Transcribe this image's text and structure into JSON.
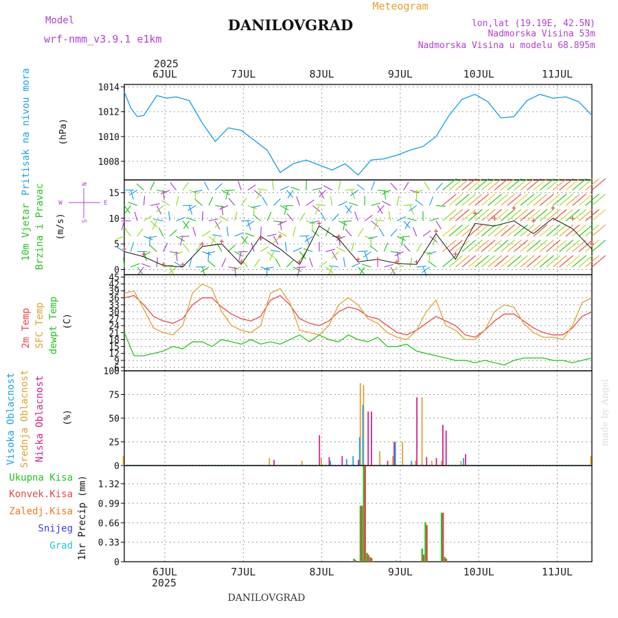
{
  "header": {
    "model_label": "Model",
    "model_value": "wrf-nmm_v3.9.1 e1km",
    "title": "DANILOVGRAD",
    "subtitle": "Meteogram",
    "coords": "lon,lat (19.19E, 42.5N)",
    "altitude": "Nadmorska Visina 53m",
    "model_altitude": "Nadmorska Visina u modelu 68.895m",
    "year_top": "2025",
    "year_bottom": "2025",
    "footer_title": "DANILOVGRAD",
    "credit": "made by Angel"
  },
  "days": [
    "6JUL",
    "7JUL",
    "8JUL",
    "9JUL",
    "10JUL",
    "11JUL"
  ],
  "colors": {
    "pressure": "#1ea0e6",
    "wind_label": "#22c41e",
    "wind_dir": "#b040d0",
    "t2m": "#e64646",
    "sfc": "#e0a030",
    "dew": "#22c41e",
    "high_cloud": "#1ea0e6",
    "mid_cloud": "#e0a030",
    "low_cloud": "#d0208c",
    "ukupna": "#22c41e",
    "konvek": "#e64646",
    "zaledj": "#f07820",
    "snijeg": "#3c3ce6",
    "grad": "#1ec8c8"
  },
  "chart_data": [
    {
      "type": "line",
      "panel": "pressure",
      "ylabel_main": "Pritisak na nivou mora",
      "unit": "(hPa)",
      "ylim": [
        1006.5,
        1014.2
      ],
      "yticks": [
        "1014",
        "1012",
        "1010",
        "1008"
      ],
      "x_hours": [
        0,
        2,
        4,
        6,
        8,
        10,
        13,
        16,
        20,
        24,
        28,
        32,
        36,
        40,
        44,
        48,
        52,
        56,
        60,
        64,
        68,
        72,
        76,
        80,
        84,
        88,
        92,
        96,
        100,
        104,
        108,
        112,
        116,
        120,
        124,
        128,
        132,
        136,
        140,
        144
      ],
      "values": [
        1013.6,
        1012.3,
        1011.6,
        1011.7,
        1012.5,
        1013.3,
        1013.1,
        1013.2,
        1012.9,
        1011.1,
        1009.6,
        1010.7,
        1010.5,
        1009.7,
        1008.9,
        1007.1,
        1007.8,
        1008.1,
        1007.7,
        1007.3,
        1007.8,
        1006.9,
        1008.1,
        1008.2,
        1008.5,
        1008.9,
        1009.2,
        1010.0,
        1011.7,
        1013.0,
        1013.4,
        1012.8,
        1011.5,
        1011.6,
        1012.9,
        1013.4,
        1013.1,
        1013.2,
        1012.8,
        1011.7
      ],
      "grid": true
    },
    {
      "type": "barbs",
      "panel": "wind",
      "ylabel_main": "10m Vjetar",
      "ylabel_sub": "Brzina i Pravac",
      "unit": "(m/s)",
      "compass": {
        "n": "N",
        "w": "W",
        "e": "E",
        "s": "S"
      },
      "ylim": [
        -1,
        17.5
      ],
      "yticks": [
        "15",
        "10",
        "5",
        "0"
      ],
      "x_hours": [
        0,
        6,
        12,
        18,
        24,
        30,
        36,
        42,
        48,
        54,
        60,
        66,
        72,
        78,
        84,
        90,
        96,
        102,
        108,
        114,
        120,
        126,
        132,
        138,
        144
      ],
      "speed": [
        3.5,
        2.5,
        0.8,
        0.5,
        4.5,
        5.0,
        1.0,
        6.5,
        4.0,
        1.0,
        8.5,
        6.0,
        1.5,
        2.0,
        1.2,
        1.0,
        7.0,
        2.0,
        9.0,
        8.5,
        9.5,
        7.0,
        10.0,
        8.0,
        4.0
      ],
      "gust": [
        4.0,
        3.0,
        1.0,
        1.0,
        5.0,
        5.5,
        1.5,
        6.0,
        6.5,
        1.5,
        9.0,
        6.5,
        2.0,
        2.0,
        1.5,
        1.5,
        7.5,
        3.0,
        11.0,
        10.0,
        12.0,
        9.5,
        12.0,
        10.0,
        5.0
      ],
      "grid": true
    },
    {
      "type": "line",
      "panel": "temperature",
      "ylabel_t2m": "2m Temp",
      "ylabel_sfc": "SFC Temp",
      "ylabel_dew": "dewpt Temp",
      "unit": "(C)",
      "ylim": [
        4.5,
        46
      ],
      "yticks": [
        "45",
        "42",
        "39",
        "36",
        "33",
        "30",
        "27",
        "24",
        "21",
        "18",
        "15",
        "12",
        "9",
        "6"
      ],
      "x_hours": [
        0,
        3,
        6,
        9,
        12,
        15,
        18,
        21,
        24,
        27,
        30,
        33,
        36,
        39,
        42,
        45,
        48,
        51,
        54,
        57,
        60,
        63,
        66,
        69,
        72,
        75,
        78,
        81,
        84,
        87,
        90,
        93,
        96,
        99,
        102,
        105,
        108,
        111,
        114,
        117,
        120,
        123,
        126,
        129,
        132,
        135,
        138,
        141,
        144
      ],
      "series": [
        {
          "name": "2m Temp",
          "values": [
            36,
            37,
            33,
            28,
            26,
            25,
            27,
            33,
            36,
            36,
            32,
            29,
            27,
            26,
            28,
            35,
            37,
            33,
            27,
            25,
            24,
            26,
            30,
            32,
            31,
            28,
            27,
            24,
            21,
            20,
            22,
            25,
            28,
            26,
            24,
            20,
            19,
            22,
            26,
            29,
            29,
            26,
            23,
            21,
            20,
            20,
            23,
            28,
            30
          ]
        },
        {
          "name": "SFC Temp",
          "values": [
            38,
            39,
            31,
            23,
            21,
            20,
            24,
            38,
            42,
            40,
            30,
            24,
            22,
            21,
            24,
            38,
            40,
            34,
            22,
            21,
            20,
            24,
            33,
            36,
            33,
            27,
            25,
            21,
            19,
            18,
            22,
            30,
            35,
            24,
            22,
            18,
            18,
            22,
            30,
            33,
            32,
            25,
            21,
            19,
            19,
            18,
            24,
            34,
            36
          ]
        },
        {
          "name": "dewpt Temp",
          "values": [
            21,
            11,
            11,
            12,
            13,
            15,
            14,
            17,
            17,
            15,
            18,
            17,
            16,
            18,
            16,
            17,
            16,
            18,
            20,
            17,
            20,
            18,
            17,
            20,
            18,
            17,
            19,
            15,
            15,
            16,
            13,
            12,
            11,
            10,
            9,
            9,
            8,
            9,
            8,
            7,
            9,
            10,
            10,
            10,
            9,
            9,
            8,
            9,
            10
          ]
        }
      ],
      "grid": true
    },
    {
      "type": "bar",
      "panel": "clouds",
      "ylabel_high": "Visoka Oblacnost",
      "ylabel_mid": "Srednja Oblacnost",
      "ylabel_low": "Niska Oblacnost",
      "unit": "(%)",
      "ylim": [
        0,
        100
      ],
      "yticks": [
        "100",
        "75",
        "50",
        "25",
        "0"
      ],
      "high_x": [
        63,
        68,
        70,
        72,
        73,
        83,
        88,
        104
      ],
      "high_values": [
        5,
        7,
        10,
        30,
        64,
        25,
        5,
        8
      ],
      "mid_x": [
        0,
        45,
        55,
        61,
        73,
        74,
        79,
        83,
        86,
        90,
        92,
        95,
        98,
        104,
        144
      ],
      "mid_values": [
        10,
        8,
        5,
        8,
        87,
        85,
        15,
        10,
        25,
        5,
        72,
        5,
        5,
        5,
        10
      ],
      "low_x": [
        46,
        60,
        63,
        67,
        72,
        75,
        76,
        81,
        83,
        90,
        93,
        96,
        98,
        99,
        105
      ],
      "low_values": [
        6,
        32,
        9,
        10,
        6,
        57,
        57,
        5,
        25,
        72,
        9,
        8,
        43,
        37,
        12
      ],
      "grid": true
    },
    {
      "type": "bar",
      "panel": "precip",
      "ylabel_main": "1hr Precip",
      "unit": "(mm)",
      "legend": [
        "Ukupna Kisa",
        "Konvek.Kisa",
        "Zaledj.Kisa",
        "Snijeg",
        "Grad"
      ],
      "ylim": [
        0,
        1.63
      ],
      "yticks": [
        "1.32",
        "0.99",
        "0.66",
        "0.33",
        "0"
      ],
      "x_hours": [
        70,
        71,
        73,
        74,
        75,
        76,
        77,
        84,
        92,
        93,
        98,
        99
      ],
      "values": [
        0.01,
        0.05,
        0.95,
        1.62,
        0.15,
        0.08,
        0.01,
        0.02,
        0.22,
        0.67,
        0.83,
        0.08
      ],
      "konvek_values": [
        0.0,
        0.03,
        0.95,
        1.62,
        0.12,
        0.06,
        0.0,
        0.0,
        0.12,
        0.62,
        0.83,
        0.05
      ],
      "grid": true
    }
  ]
}
